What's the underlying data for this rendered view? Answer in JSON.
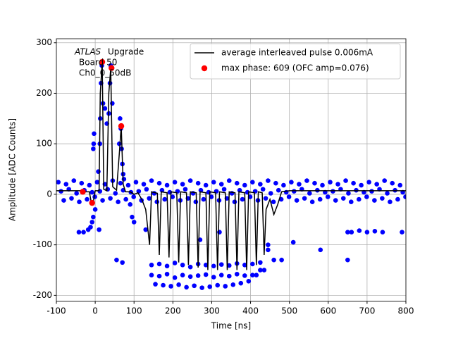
{
  "chart_data": {
    "type": "line",
    "xlabel": "Time [ns]",
    "ylabel": "Amplitude [ADC Counts]",
    "annotation": [
      "ATLAS",
      "Upgrade",
      "Board 50",
      "Ch0_0_50dB"
    ],
    "xlim": [
      -100,
      800
    ],
    "xticks": [
      -100,
      0,
      100,
      200,
      300,
      400,
      500,
      600,
      700,
      800
    ],
    "ylim": [
      -212,
      308
    ],
    "yticks": [
      -200,
      -100,
      0,
      100,
      200,
      300
    ],
    "grid": true,
    "legend": "upper right",
    "series": [
      {
        "color": "#0000ff",
        "kind": "scatter",
        "x": [
          -95,
          -75,
          -55,
          -35,
          -15,
          5,
          25,
          45,
          65,
          85,
          105,
          125,
          145,
          165,
          185,
          205,
          225,
          245,
          265,
          285,
          305,
          325,
          345,
          365,
          385,
          405,
          425,
          445,
          465,
          485,
          505,
          525,
          545,
          565,
          585,
          605,
          625,
          645,
          665,
          685,
          705,
          725,
          745,
          765,
          785,
          -88,
          -68,
          -48,
          -28,
          -8,
          12,
          32,
          52,
          72,
          92,
          112,
          132,
          152,
          172,
          192,
          212,
          232,
          252,
          272,
          292,
          312,
          332,
          352,
          372,
          392,
          412,
          432,
          452,
          472,
          492,
          512,
          532,
          552,
          572,
          592,
          612,
          632,
          652,
          672,
          692,
          712,
          732,
          752,
          772,
          792,
          -81,
          -61,
          -41,
          -21,
          -1,
          19,
          39,
          59,
          79,
          99,
          119,
          139,
          159,
          179,
          199,
          219,
          239,
          259,
          279,
          299,
          319,
          339,
          359,
          379,
          399,
          419,
          439,
          459,
          479,
          499,
          519,
          539,
          559,
          579,
          599,
          619,
          639,
          659,
          679,
          699,
          719,
          739,
          759,
          779,
          799,
          13,
          15,
          17,
          20,
          12,
          25,
          35,
          38,
          40,
          44,
          30,
          62,
          64,
          66,
          68,
          70,
          72,
          74,
          0,
          -5,
          -8,
          -12,
          10,
          -18,
          -30,
          8,
          -5,
          -3,
          -4,
          90,
          95,
          100,
          130,
          145,
          165,
          185,
          205,
          225,
          245,
          265,
          285,
          305,
          325,
          345,
          365,
          385,
          405,
          425,
          445,
          145,
          165,
          185,
          205,
          225,
          245,
          265,
          285,
          305,
          325,
          345,
          365,
          385,
          405,
          425,
          445,
          155,
          175,
          195,
          215,
          235,
          255,
          275,
          295,
          315,
          335,
          355,
          375,
          395,
          415,
          435,
          -42,
          650,
          660,
          680,
          700,
          720,
          740,
          790,
          55,
          70,
          320,
          270,
          460,
          480,
          510,
          650,
          580
        ],
        "values": [
          24,
          20,
          27,
          22,
          18,
          24,
          20,
          27,
          22,
          18,
          24,
          20,
          27,
          22,
          18,
          24,
          20,
          27,
          22,
          18,
          24,
          20,
          27,
          22,
          18,
          24,
          20,
          27,
          22,
          18,
          24,
          20,
          27,
          22,
          18,
          24,
          20,
          27,
          22,
          18,
          24,
          20,
          27,
          22,
          18,
          6,
          10,
          2,
          8,
          4,
          6,
          10,
          2,
          8,
          4,
          6,
          10,
          2,
          8,
          4,
          6,
          10,
          2,
          8,
          4,
          6,
          10,
          2,
          8,
          4,
          6,
          10,
          2,
          8,
          4,
          6,
          10,
          2,
          8,
          4,
          6,
          10,
          2,
          8,
          4,
          6,
          10,
          2,
          8,
          4,
          -12,
          -8,
          -15,
          -10,
          -5,
          -12,
          -8,
          -15,
          -10,
          -5,
          -12,
          -8,
          -15,
          -10,
          -5,
          -12,
          -8,
          -15,
          -10,
          -5,
          -12,
          -8,
          -15,
          -10,
          -5,
          -12,
          -8,
          -15,
          -10,
          -5,
          -12,
          -8,
          -15,
          -10,
          -5,
          -12,
          -8,
          -15,
          -10,
          -5,
          -12,
          -8,
          -15,
          -10,
          -5,
          150,
          220,
          255,
          180,
          100,
          170,
          160,
          220,
          255,
          180,
          140,
          100,
          150,
          130,
          90,
          60,
          40,
          30,
          -30,
          -45,
          -55,
          -65,
          -70,
          -70,
          -75,
          45,
          90,
          120,
          100,
          -20,
          -45,
          -55,
          -70,
          -140,
          -138,
          -142,
          -136,
          -140,
          -144,
          -138,
          -140,
          -142,
          -139,
          -141,
          -137,
          -140,
          -138,
          -135,
          -100,
          -160,
          -162,
          -158,
          -165,
          -160,
          -163,
          -161,
          -159,
          -164,
          -160,
          -162,
          -158,
          -161,
          -160,
          -150,
          -110,
          -178,
          -180,
          -182,
          -179,
          -184,
          -181,
          -185,
          -183,
          -180,
          -182,
          -179,
          -176,
          -172,
          -160,
          -150,
          -75,
          -75,
          -75,
          -72,
          -75,
          -73,
          -75,
          -75,
          -130,
          -135,
          -75,
          -90,
          -130,
          -130,
          -95,
          -130,
          -110
        ]
      },
      {
        "name": "average interleaved pulse 0.006mA",
        "color": "#000000",
        "kind": "line",
        "x": [
          -100,
          -35,
          -30,
          -15,
          -10,
          -5,
          0,
          10,
          13,
          18,
          22,
          30,
          35,
          40,
          45,
          55,
          62,
          67,
          72,
          78,
          90,
          100,
          110,
          120,
          130,
          140,
          145,
          160,
          165,
          170,
          185,
          190,
          195,
          210,
          215,
          220,
          235,
          240,
          245,
          260,
          265,
          270,
          285,
          290,
          295,
          310,
          315,
          320,
          335,
          340,
          345,
          360,
          365,
          370,
          385,
          390,
          395,
          410,
          415,
          420,
          430,
          435,
          440,
          450,
          460,
          470,
          480,
          500,
          800
        ],
        "values": [
          7,
          7,
          5,
          5,
          -17,
          -15,
          7,
          7,
          200,
          262,
          10,
          7,
          200,
          250,
          15,
          8,
          80,
          135,
          20,
          5,
          5,
          0,
          3,
          -10,
          -30,
          -100,
          5,
          2,
          -120,
          5,
          3,
          -125,
          5,
          3,
          -135,
          5,
          3,
          -140,
          5,
          3,
          -145,
          5,
          3,
          -150,
          5,
          3,
          -150,
          5,
          3,
          -150,
          5,
          3,
          -150,
          5,
          3,
          -150,
          5,
          3,
          -140,
          5,
          3,
          -120,
          -30,
          -10,
          -40,
          -20,
          5,
          7,
          7
        ]
      },
      {
        "name": "max phase: 609 (OFC amp=0.076)",
        "color": "#ff0000",
        "kind": "scatter",
        "x": [
          -32,
          -8,
          18,
          42,
          67
        ],
        "values": [
          5,
          -17,
          262,
          250,
          135
        ]
      }
    ]
  }
}
